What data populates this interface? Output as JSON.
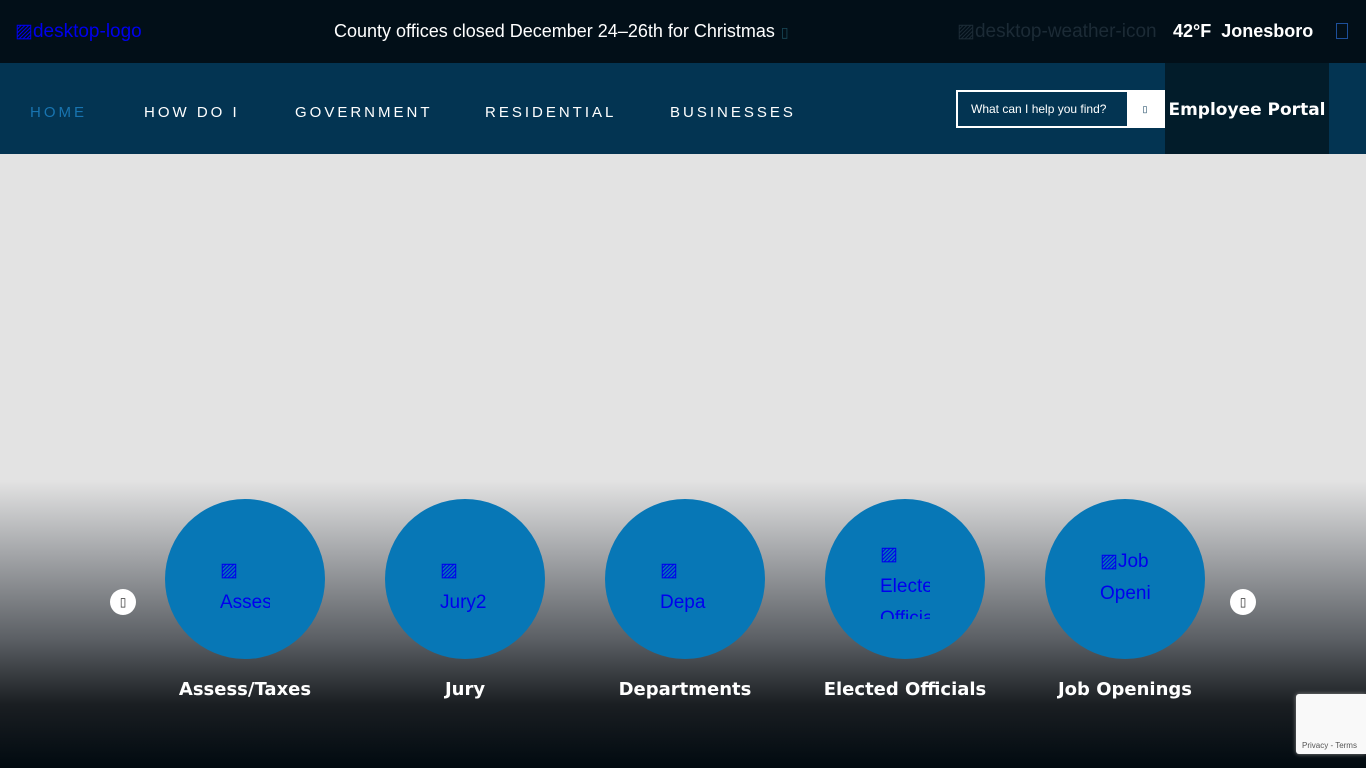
{
  "topbar": {
    "logo_alt": "desktop-logo",
    "alert": "County offices closed December 24–26th for Christmas",
    "alert_icon": "close-icon",
    "weather_icon_alt": "desktop-weather-icon",
    "temperature": "42°F",
    "city": "Jonesboro",
    "menu_icon": "menu-icon"
  },
  "nav": {
    "items": [
      {
        "label": "HOME",
        "active": true
      },
      {
        "label": "HOW DO I"
      },
      {
        "label": "GOVERNMENT"
      },
      {
        "label": "RESIDENTIAL"
      },
      {
        "label": "BUSINESSES"
      }
    ],
    "search_placeholder": "What can I help you find?",
    "search_icon": "search-icon",
    "portal": "Employee Portal",
    "active_color": "#1874b0"
  },
  "carousel": {
    "prev_icon": "chevron-left-icon",
    "next_icon": "chevron-right-icon",
    "tiles": [
      {
        "alt": "Assess",
        "label": "Assess/Taxes"
      },
      {
        "alt": "Jury2",
        "label": "Jury"
      },
      {
        "alt": "Depa",
        "label": "Departments"
      },
      {
        "alt": "Elected Officials",
        "label": "Elected Officials"
      },
      {
        "alt": "Job Openings",
        "label": "Job Openings"
      }
    ]
  },
  "recaptcha": {
    "text": "Privacy - Terms"
  }
}
